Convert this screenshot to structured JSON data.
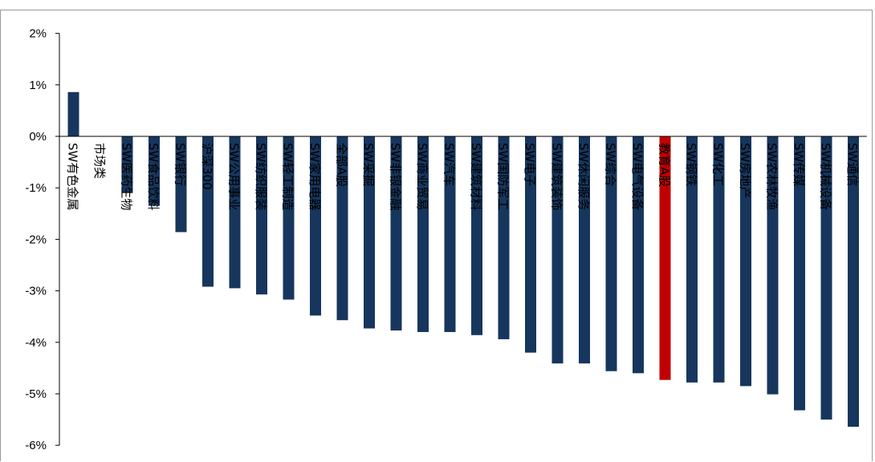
{
  "chart_data": {
    "type": "bar",
    "title": "",
    "xlabel": "",
    "ylabel": "",
    "ylim": [
      -6,
      2
    ],
    "yticks": [
      2,
      1,
      0,
      -1,
      -2,
      -3,
      -4,
      -5,
      -6
    ],
    "ytick_suffix": "%",
    "grid": false,
    "legend": "none",
    "categories": [
      "SW有色金属",
      "市场类",
      "SW医药生物",
      "SW食品饮料",
      "SW银行",
      "沪深300",
      "SW公用事业",
      "SW纺织服装",
      "SW轻工制造",
      "SW家用电器",
      "全部A股",
      "SW采掘",
      "SW非银金融",
      "SW商业贸易",
      "SW汽车",
      "SW建筑材料",
      "SW国防军工",
      "SW电子",
      "SW建筑装饰",
      "SW休闲服务",
      "SW综合",
      "SW电气设备",
      "教育A股",
      "SW钢铁",
      "SW化工",
      "SW房地产",
      "SW农林牧渔",
      "SW传媒",
      "SW机械设备",
      "SW通信"
    ],
    "values": [
      0.86,
      0.0,
      -1.1,
      -1.35,
      -1.86,
      -2.92,
      -2.95,
      -3.07,
      -3.17,
      -3.48,
      -3.57,
      -3.73,
      -3.77,
      -3.8,
      -3.8,
      -3.86,
      -3.94,
      -4.2,
      -4.41,
      -4.41,
      -4.56,
      -4.6,
      -4.73,
      -4.78,
      -4.78,
      -4.85,
      -5.01,
      -5.32,
      -5.5,
      -5.64
    ],
    "highlight_index": 22,
    "colors": {
      "bar": "#17365d",
      "highlight": "#c00000",
      "axis": "#000000",
      "frame": "#9a9a9a"
    }
  }
}
